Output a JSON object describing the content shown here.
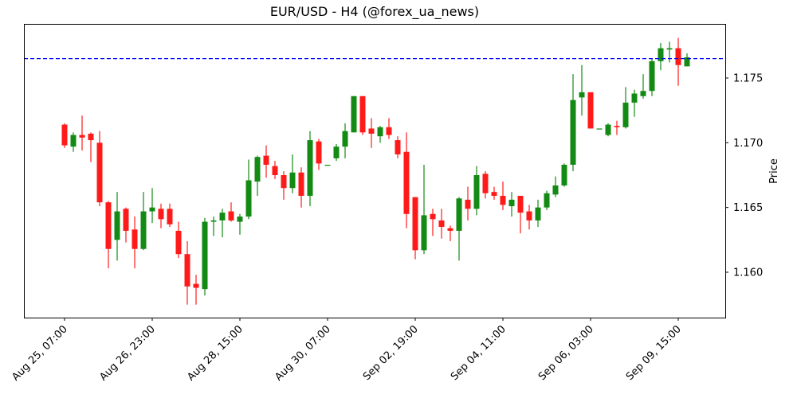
{
  "chart_data": {
    "type": "candlestick",
    "title": "EUR/USD - H4 (@forex_ua_news)",
    "xlabel": "",
    "ylabel": "Price",
    "ylim": [
      1.1563,
      1.179
    ],
    "y_ticks": [
      1.16,
      1.165,
      1.17,
      1.175
    ],
    "y_tick_labels": [
      "1.160",
      "1.165",
      "1.170",
      "1.175"
    ],
    "x_tick_labels": [
      "Aug 25, 07:00",
      "Aug 26, 23:00",
      "Aug 28, 15:00",
      "Aug 30, 07:00",
      "Sep 02, 19:00",
      "Sep 04, 11:00",
      "Sep 06, 03:00",
      "Sep 09, 15:00"
    ],
    "x_tick_index": [
      0,
      10,
      20,
      30,
      40,
      50,
      60,
      70
    ],
    "reference_line": {
      "value": 1.1765,
      "style": "dashed",
      "color": "#0000ff"
    },
    "colors": {
      "up": "#138a13",
      "down": "#ff1a1a",
      "frame": "#000000"
    },
    "grid": false,
    "candles": [
      {
        "o": 1.1714,
        "h": 1.1715,
        "l": 1.1696,
        "c": 1.1698
      },
      {
        "o": 1.1697,
        "h": 1.1708,
        "l": 1.1693,
        "c": 1.1706
      },
      {
        "o": 1.1706,
        "h": 1.1721,
        "l": 1.1694,
        "c": 1.1704
      },
      {
        "o": 1.1707,
        "h": 1.1708,
        "l": 1.1685,
        "c": 1.1702
      },
      {
        "o": 1.17,
        "h": 1.1709,
        "l": 1.1651,
        "c": 1.1654
      },
      {
        "o": 1.1654,
        "h": 1.1655,
        "l": 1.1603,
        "c": 1.1618
      },
      {
        "o": 1.1625,
        "h": 1.1662,
        "l": 1.1609,
        "c": 1.1647
      },
      {
        "o": 1.1649,
        "h": 1.165,
        "l": 1.1623,
        "c": 1.1632
      },
      {
        "o": 1.1633,
        "h": 1.1643,
        "l": 1.1603,
        "c": 1.1618
      },
      {
        "o": 1.1618,
        "h": 1.1662,
        "l": 1.1617,
        "c": 1.1647
      },
      {
        "o": 1.1647,
        "h": 1.1665,
        "l": 1.1638,
        "c": 1.165
      },
      {
        "o": 1.1649,
        "h": 1.1653,
        "l": 1.1634,
        "c": 1.1641
      },
      {
        "o": 1.1649,
        "h": 1.1653,
        "l": 1.1635,
        "c": 1.1637
      },
      {
        "o": 1.1632,
        "h": 1.1639,
        "l": 1.1611,
        "c": 1.1614
      },
      {
        "o": 1.1614,
        "h": 1.1624,
        "l": 1.1575,
        "c": 1.1589
      },
      {
        "o": 1.1591,
        "h": 1.1598,
        "l": 1.1575,
        "c": 1.1588
      },
      {
        "o": 1.1587,
        "h": 1.1642,
        "l": 1.1582,
        "c": 1.1639
      },
      {
        "o": 1.1639,
        "h": 1.1643,
        "l": 1.1628,
        "c": 1.164
      },
      {
        "o": 1.164,
        "h": 1.1649,
        "l": 1.1627,
        "c": 1.1646
      },
      {
        "o": 1.1647,
        "h": 1.1654,
        "l": 1.1639,
        "c": 1.164
      },
      {
        "o": 1.1639,
        "h": 1.1645,
        "l": 1.1629,
        "c": 1.1643
      },
      {
        "o": 1.1643,
        "h": 1.1687,
        "l": 1.1641,
        "c": 1.1671
      },
      {
        "o": 1.167,
        "h": 1.169,
        "l": 1.1659,
        "c": 1.1689
      },
      {
        "o": 1.169,
        "h": 1.1698,
        "l": 1.1673,
        "c": 1.1683
      },
      {
        "o": 1.1682,
        "h": 1.1686,
        "l": 1.1672,
        "c": 1.1675
      },
      {
        "o": 1.1675,
        "h": 1.1678,
        "l": 1.1656,
        "c": 1.1665
      },
      {
        "o": 1.1665,
        "h": 1.1691,
        "l": 1.1661,
        "c": 1.1677
      },
      {
        "o": 1.1677,
        "h": 1.1681,
        "l": 1.165,
        "c": 1.1659
      },
      {
        "o": 1.1659,
        "h": 1.1709,
        "l": 1.1651,
        "c": 1.1702
      },
      {
        "o": 1.1701,
        "h": 1.1703,
        "l": 1.1679,
        "c": 1.1684
      },
      {
        "o": 1.1683,
        "h": 1.1683,
        "l": 1.1683,
        "c": 1.1683
      },
      {
        "o": 1.1688,
        "h": 1.1699,
        "l": 1.1686,
        "c": 1.1697
      },
      {
        "o": 1.1697,
        "h": 1.1715,
        "l": 1.1688,
        "c": 1.1709
      },
      {
        "o": 1.1708,
        "h": 1.1736,
        "l": 1.1708,
        "c": 1.1736
      },
      {
        "o": 1.1736,
        "h": 1.1736,
        "l": 1.1706,
        "c": 1.1708
      },
      {
        "o": 1.1711,
        "h": 1.1719,
        "l": 1.1696,
        "c": 1.1707
      },
      {
        "o": 1.1705,
        "h": 1.1713,
        "l": 1.17,
        "c": 1.1712
      },
      {
        "o": 1.1712,
        "h": 1.1719,
        "l": 1.1703,
        "c": 1.1706
      },
      {
        "o": 1.1702,
        "h": 1.1705,
        "l": 1.1688,
        "c": 1.1691
      },
      {
        "o": 1.1693,
        "h": 1.1708,
        "l": 1.1634,
        "c": 1.1645
      },
      {
        "o": 1.1658,
        "h": 1.1654,
        "l": 1.161,
        "c": 1.1617
      },
      {
        "o": 1.1617,
        "h": 1.1683,
        "l": 1.1614,
        "c": 1.1644
      },
      {
        "o": 1.1645,
        "h": 1.1649,
        "l": 1.1628,
        "c": 1.1641
      },
      {
        "o": 1.164,
        "h": 1.1649,
        "l": 1.1626,
        "c": 1.1635
      },
      {
        "o": 1.1634,
        "h": 1.1636,
        "l": 1.1624,
        "c": 1.1632
      },
      {
        "o": 1.1632,
        "h": 1.1658,
        "l": 1.1609,
        "c": 1.1657
      },
      {
        "o": 1.1656,
        "h": 1.1666,
        "l": 1.164,
        "c": 1.1649
      },
      {
        "o": 1.1649,
        "h": 1.1682,
        "l": 1.1644,
        "c": 1.1675
      },
      {
        "o": 1.1676,
        "h": 1.1678,
        "l": 1.1657,
        "c": 1.1661
      },
      {
        "o": 1.1662,
        "h": 1.1666,
        "l": 1.1656,
        "c": 1.1659
      },
      {
        "o": 1.1659,
        "h": 1.167,
        "l": 1.1648,
        "c": 1.1652
      },
      {
        "o": 1.1651,
        "h": 1.1662,
        "l": 1.1643,
        "c": 1.1656
      },
      {
        "o": 1.1659,
        "h": 1.1658,
        "l": 1.163,
        "c": 1.1646
      },
      {
        "o": 1.1647,
        "h": 1.1652,
        "l": 1.1633,
        "c": 1.164
      },
      {
        "o": 1.164,
        "h": 1.1656,
        "l": 1.1635,
        "c": 1.165
      },
      {
        "o": 1.165,
        "h": 1.1663,
        "l": 1.1648,
        "c": 1.1661
      },
      {
        "o": 1.166,
        "h": 1.1674,
        "l": 1.1658,
        "c": 1.1667
      },
      {
        "o": 1.1667,
        "h": 1.1684,
        "l": 1.1666,
        "c": 1.1683
      },
      {
        "o": 1.1683,
        "h": 1.1753,
        "l": 1.1678,
        "c": 1.1733
      },
      {
        "o": 1.1735,
        "h": 1.176,
        "l": 1.1721,
        "c": 1.1739
      },
      {
        "o": 1.1739,
        "h": 1.1739,
        "l": 1.1711,
        "c": 1.1711
      },
      {
        "o": 1.1711,
        "h": 1.1711,
        "l": 1.1711,
        "c": 1.1711
      },
      {
        "o": 1.1706,
        "h": 1.1715,
        "l": 1.1705,
        "c": 1.1714
      },
      {
        "o": 1.1713,
        "h": 1.1717,
        "l": 1.1706,
        "c": 1.1712
      },
      {
        "o": 1.1712,
        "h": 1.1743,
        "l": 1.1711,
        "c": 1.1731
      },
      {
        "o": 1.1731,
        "h": 1.1741,
        "l": 1.172,
        "c": 1.1738
      },
      {
        "o": 1.1736,
        "h": 1.1753,
        "l": 1.1734,
        "c": 1.174
      },
      {
        "o": 1.174,
        "h": 1.1765,
        "l": 1.1736,
        "c": 1.1763
      },
      {
        "o": 1.1763,
        "h": 1.1777,
        "l": 1.1756,
        "c": 1.1773
      },
      {
        "o": 1.1772,
        "h": 1.1778,
        "l": 1.1762,
        "c": 1.1773
      },
      {
        "o": 1.1773,
        "h": 1.1781,
        "l": 1.1744,
        "c": 1.176
      },
      {
        "o": 1.1759,
        "h": 1.1769,
        "l": 1.1759,
        "c": 1.1766
      }
    ]
  }
}
